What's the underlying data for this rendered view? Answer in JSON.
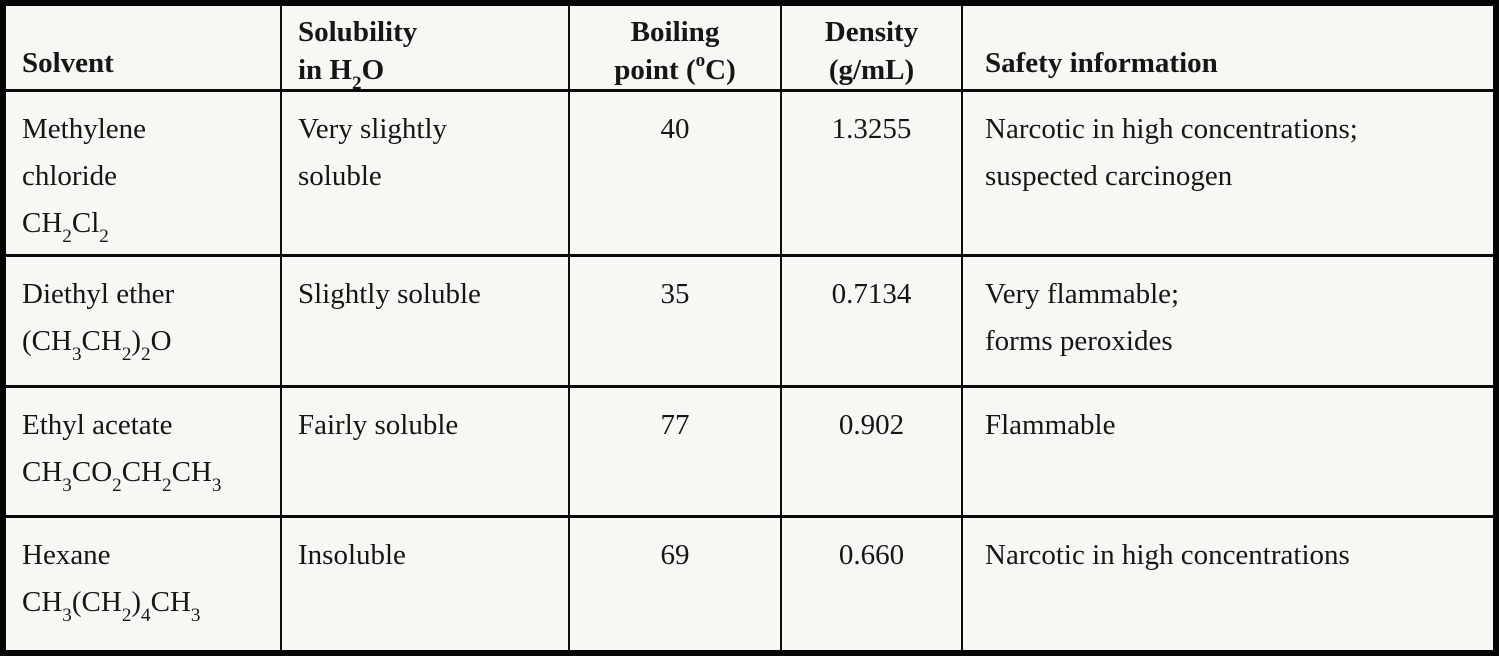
{
  "colors": {
    "border": "#050505",
    "text": "#161616",
    "paper": "#fbfbf8"
  },
  "table": {
    "header": {
      "solvent": "Solvent",
      "solubility_line1": "Solubility",
      "solubility_line2": "in H~2~O",
      "boiling_line1": "Boiling",
      "boiling_line2": "point (^o^C)",
      "density_line1": "Density",
      "density_line2": "(g/mL)",
      "safety": "Safety information"
    },
    "rows": [
      {
        "name": "Methylene chloride",
        "formula": "CH~2~Cl~2~",
        "solubility": "Very slightly soluble",
        "boiling_point": "40",
        "density": "1.3255",
        "safety": "Narcotic in high concentrations;|suspected carcinogen"
      },
      {
        "name": "Diethyl ether",
        "formula": "(CH~3~CH~2~)~2~O",
        "solubility": "Slightly soluble",
        "boiling_point": "35",
        "density": "0.7134",
        "safety": "Very flammable;|forms peroxides"
      },
      {
        "name": "Ethyl acetate",
        "formula": "CH~3~CO~2~CH~2~CH~3~",
        "solubility": "Fairly soluble",
        "boiling_point": "77",
        "density": "0.902",
        "safety": "Flammable"
      },
      {
        "name": "Hexane",
        "formula": "CH~3~(CH~2~)~4~CH~3~",
        "solubility": "Insoluble",
        "boiling_point": "69",
        "density": "0.660",
        "safety": "Narcotic in high concentrations"
      }
    ]
  }
}
